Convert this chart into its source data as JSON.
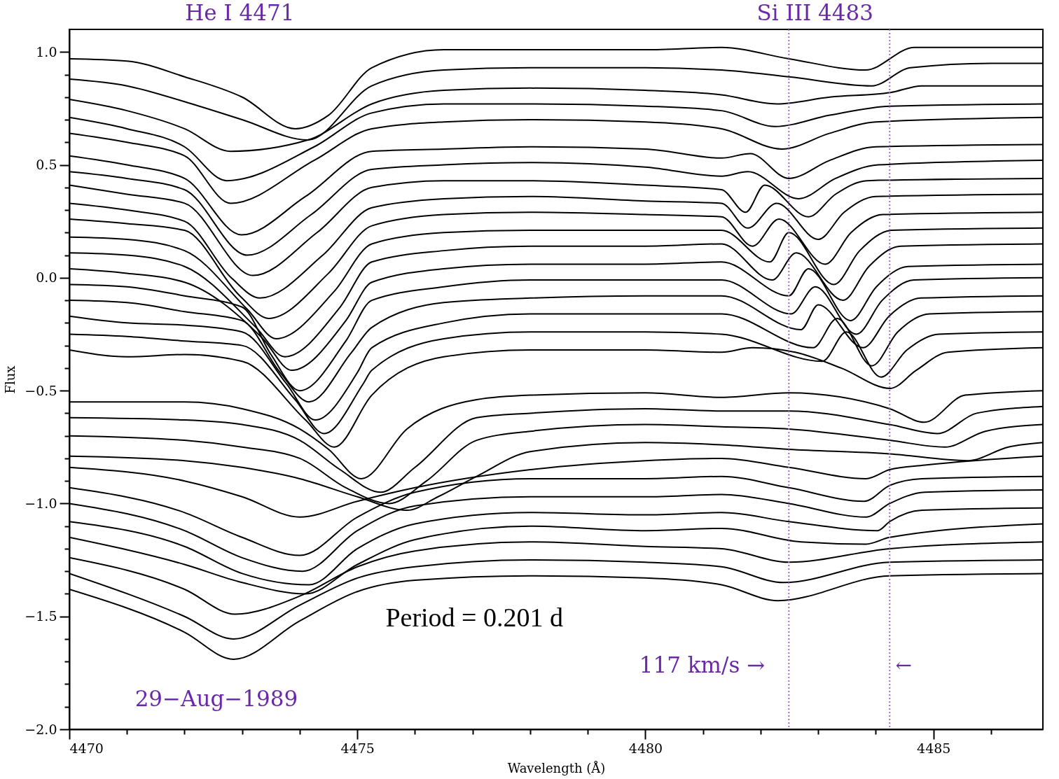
{
  "chart_data": {
    "type": "line",
    "xlabel": "Wavelength (Å)",
    "ylabel": "Flux",
    "xlim": [
      4470,
      4486.9
    ],
    "ylim": [
      -2.0,
      1.1
    ],
    "xticks": [
      4470,
      {
        "value": 4471,
        "label": null
      },
      {
        "value": 4472,
        "label": null
      },
      {
        "value": 4473,
        "label": null
      },
      {
        "value": 4474,
        "label": null
      },
      4475,
      {
        "value": 4476,
        "label": null
      },
      {
        "value": 4477,
        "label": null
      },
      {
        "value": 4478,
        "label": null
      },
      {
        "value": 4479,
        "label": null
      },
      4480,
      {
        "value": 4481,
        "label": null
      },
      {
        "value": 4482,
        "label": null
      },
      {
        "value": 4483,
        "label": null
      },
      {
        "value": 4484,
        "label": null
      },
      4485,
      {
        "value": 4486,
        "label": null
      }
    ],
    "yticks": [
      {
        "value": -2,
        "label": "−2.0"
      },
      {
        "value": -1.9,
        "label": null
      },
      {
        "value": -1.8,
        "label": null
      },
      {
        "value": -1.7,
        "label": null
      },
      {
        "value": -1.6,
        "label": null
      },
      {
        "value": -1.5,
        "label": "−1.5"
      },
      {
        "value": -1.4,
        "label": null
      },
      {
        "value": -1.3,
        "label": null
      },
      {
        "value": -1.2,
        "label": null
      },
      {
        "value": -1.1,
        "label": null
      },
      {
        "value": -1,
        "label": "−1.0"
      },
      {
        "value": -0.9,
        "label": null
      },
      {
        "value": -0.8,
        "label": null
      },
      {
        "value": -0.7,
        "label": null
      },
      {
        "value": -0.6,
        "label": null
      },
      {
        "value": -0.5,
        "label": "−0.5"
      },
      {
        "value": -0.4,
        "label": null
      },
      {
        "value": -0.3,
        "label": null
      },
      {
        "value": -0.2,
        "label": null
      },
      {
        "value": -0.1,
        "label": null
      },
      {
        "value": 0,
        "label": "0.0"
      },
      {
        "value": 0.1,
        "label": null
      },
      {
        "value": 0.2,
        "label": null
      },
      {
        "value": 0.3,
        "label": null
      },
      {
        "value": 0.4,
        "label": null
      },
      {
        "value": 0.5,
        "label": "0.5"
      },
      {
        "value": 0.6,
        "label": null
      },
      {
        "value": 0.7,
        "label": null
      },
      {
        "value": 0.8,
        "label": null
      },
      {
        "value": 0.9,
        "label": null
      },
      {
        "value": 1,
        "label": "1.0"
      }
    ],
    "ref_lines": [
      {
        "axis": "x",
        "value": 4482.49,
        "color": "#9b6bd6",
        "line_style": "dotted"
      },
      {
        "axis": "x",
        "value": 4484.24,
        "color": "#9b6bd6",
        "line_style": "dotted"
      }
    ],
    "annotations": [
      "He I 4471",
      "Si III 4483",
      "Period = 0.201 d",
      "117 km/s →",
      "←",
      "29−Aug−1989"
    ],
    "series": [
      {
        "color": "#000000",
        "x": [
          4470,
          4471,
          4472,
          4473,
          4473.92,
          4474.5,
          4475.25,
          4476.5,
          4478,
          4480,
          4481.32,
          4482.49,
          4483.82,
          4484.67,
          4486,
          4486.9
        ],
        "values": [
          0.97,
          0.96,
          0.89,
          0.8,
          0.66,
          0.72,
          0.93,
          1.01,
          1.01,
          1.01,
          1.02,
          0.97,
          0.92,
          1.02,
          1.02,
          1.02
        ]
      },
      {
        "color": "#000000",
        "x": [
          4470,
          4471,
          4472,
          4473,
          4474.14,
          4475.25,
          4476.5,
          4478,
          4480,
          4481.32,
          4482.49,
          4483.93,
          4484.6,
          4486,
          4486.9
        ],
        "values": [
          0.88,
          0.85,
          0.78,
          0.7,
          0.61,
          0.85,
          0.92,
          0.93,
          0.93,
          0.92,
          0.89,
          0.85,
          0.93,
          0.95,
          0.95
        ]
      },
      {
        "color": "#000000",
        "x": [
          4470,
          4471,
          4472,
          4472.8,
          4474.14,
          4475.25,
          4476.5,
          4478,
          4480,
          4481.32,
          4482.28,
          4483.2,
          4484.25,
          4484.8,
          4486.9
        ],
        "values": [
          0.79,
          0.74,
          0.66,
          0.56,
          0.61,
          0.77,
          0.83,
          0.84,
          0.83,
          0.81,
          0.77,
          0.8,
          0.82,
          0.85,
          0.85
        ]
      },
      {
        "color": "#000000",
        "x": [
          4470,
          4471,
          4472,
          4472.73,
          4474.25,
          4475.25,
          4476.5,
          4478,
          4480,
          4481.32,
          4482.25,
          4483.2,
          4484.25,
          4486.9
        ],
        "values": [
          0.71,
          0.66,
          0.58,
          0.43,
          0.58,
          0.73,
          0.77,
          0.77,
          0.76,
          0.74,
          0.67,
          0.72,
          0.76,
          0.77
        ]
      },
      {
        "color": "#000000",
        "x": [
          4470,
          4471,
          4472,
          4472.8,
          4474.25,
          4475.25,
          4476.5,
          4478,
          4480,
          4481.32,
          4482.37,
          4483.2,
          4484.0,
          4486.9
        ],
        "values": [
          0.64,
          0.6,
          0.54,
          0.33,
          0.52,
          0.66,
          0.69,
          0.7,
          0.69,
          0.66,
          0.57,
          0.64,
          0.69,
          0.71
        ]
      },
      {
        "color": "#000000",
        "x": [
          4470,
          4471,
          4472,
          4472.99,
          4474.1,
          4475.25,
          4476.5,
          4478,
          4480,
          4481.32,
          4481.82,
          4482.49,
          4483.2,
          4484.0,
          4486.9
        ],
        "values": [
          0.54,
          0.5,
          0.44,
          0.19,
          0.36,
          0.56,
          0.57,
          0.58,
          0.57,
          0.53,
          0.55,
          0.44,
          0.52,
          0.58,
          0.59
        ]
      },
      {
        "color": "#000000",
        "x": [
          4470,
          4471,
          4472,
          4473.09,
          4474.2,
          4475.25,
          4476.5,
          4478,
          4480,
          4481.32,
          4481.78,
          4482.66,
          4483.3,
          4484.04,
          4486.9
        ],
        "values": [
          0.47,
          0.44,
          0.39,
          0.1,
          0.28,
          0.48,
          0.5,
          0.51,
          0.49,
          0.45,
          0.47,
          0.35,
          0.44,
          0.5,
          0.52
        ]
      },
      {
        "color": "#000000",
        "x": [
          4470,
          4471,
          4472,
          4473.19,
          4474.3,
          4475.25,
          4476.5,
          4478,
          4480,
          4481.32,
          4481.74,
          4482.07,
          4482.83,
          4483.3,
          4483.85,
          4486.9
        ],
        "values": [
          0.41,
          0.37,
          0.33,
          0.01,
          0.2,
          0.4,
          0.43,
          0.43,
          0.41,
          0.39,
          0.29,
          0.41,
          0.27,
          0.37,
          0.43,
          0.44
        ]
      },
      {
        "color": "#000000",
        "x": [
          4470,
          4471,
          4472,
          4472.81,
          4473.31,
          4474.4,
          4475.25,
          4476.5,
          4478,
          4480,
          4481.32,
          4481.78,
          4482.28,
          4483.0,
          4483.45,
          4484.0,
          4486.9
        ],
        "values": [
          0.33,
          0.3,
          0.25,
          0.0,
          -0.09,
          0.1,
          0.31,
          0.35,
          0.36,
          0.34,
          0.33,
          0.22,
          0.33,
          0.17,
          0.29,
          0.36,
          0.37
        ]
      },
      {
        "color": "#000000",
        "x": [
          4470,
          4471,
          4472,
          4472.96,
          4473.46,
          4474.5,
          4475.25,
          4476.5,
          4478,
          4480,
          4481.32,
          4481.86,
          4482.32,
          4483.12,
          4483.57,
          4484.12,
          4486.9
        ],
        "values": [
          0.26,
          0.24,
          0.21,
          -0.08,
          -0.18,
          0.02,
          0.23,
          0.28,
          0.29,
          0.28,
          0.27,
          0.14,
          0.26,
          0.06,
          0.2,
          0.28,
          0.29
        ]
      },
      {
        "color": "#000000",
        "x": [
          4470,
          4471,
          4472,
          4473.09,
          4473.59,
          4474.6,
          4475.25,
          4476.5,
          4478,
          4480,
          4481.32,
          4482.16,
          4482.49,
          4483.27,
          4483.72,
          4484.27,
          4486.9
        ],
        "values": [
          0.18,
          0.17,
          0.12,
          -0.14,
          -0.27,
          -0.06,
          0.15,
          0.2,
          0.21,
          0.21,
          0.21,
          0.07,
          0.2,
          -0.03,
          0.12,
          0.21,
          0.22
        ]
      },
      {
        "color": "#000000",
        "x": [
          4470,
          4471,
          4472,
          4473.24,
          4473.74,
          4474.7,
          4475.25,
          4476.5,
          4478,
          4480,
          4481.32,
          4482.2,
          4482.62,
          4483.43,
          4483.88,
          4484.43,
          4486.9
        ],
        "values": [
          0.11,
          0.1,
          0.05,
          -0.22,
          -0.35,
          -0.13,
          0.07,
          0.12,
          0.14,
          0.14,
          0.15,
          -0.01,
          0.11,
          -0.1,
          0.05,
          0.14,
          0.15
        ]
      },
      {
        "color": "#000000",
        "x": [
          4470,
          4471,
          4472,
          4473.36,
          4473.86,
          4474.8,
          4475.25,
          4476.5,
          4478,
          4480,
          4481.32,
          4482.49,
          4482.83,
          4483.56,
          4484.01,
          4484.56,
          4486.9
        ],
        "values": [
          0.04,
          0.02,
          -0.02,
          -0.27,
          -0.41,
          -0.19,
          -0.02,
          0.04,
          0.06,
          0.06,
          0.07,
          -0.08,
          0.04,
          -0.19,
          -0.04,
          0.05,
          0.06
        ]
      },
      {
        "color": "#000000",
        "x": [
          4470,
          4471,
          4472,
          4473,
          4473.5,
          4474.0,
          4474.8,
          4475.25,
          4476.5,
          4478,
          4480,
          4481.32,
          4482.53,
          4482.95,
          4483.66,
          4484.11,
          4484.66,
          4486.9
        ],
        "values": [
          -0.03,
          -0.04,
          -0.08,
          -0.13,
          -0.34,
          -0.5,
          -0.28,
          -0.1,
          -0.04,
          -0.01,
          -0.01,
          -0.01,
          -0.16,
          -0.04,
          -0.25,
          -0.1,
          -0.01,
          0.0
        ]
      },
      {
        "color": "#000000",
        "x": [
          4470,
          4471,
          4472,
          4473,
          4473.66,
          4474.16,
          4474.9,
          4475.25,
          4476.5,
          4478,
          4480,
          4481.32,
          4482.7,
          4483.0,
          4483.78,
          4484.23,
          4484.78,
          4486.9
        ],
        "values": [
          -0.1,
          -0.11,
          -0.15,
          -0.19,
          -0.42,
          -0.55,
          -0.33,
          -0.22,
          -0.11,
          -0.09,
          -0.08,
          -0.08,
          -0.23,
          -0.12,
          -0.31,
          -0.17,
          -0.09,
          -0.08
        ]
      },
      {
        "color": "#000000",
        "x": [
          4470,
          4471,
          4472,
          4473,
          4473.77,
          4474.27,
          4475.0,
          4475.25,
          4476.5,
          4478,
          4480,
          4481.32,
          4482.91,
          4483.33,
          4483.93,
          4484.38,
          4484.93,
          4486.9
        ],
        "values": [
          -0.17,
          -0.2,
          -0.21,
          -0.24,
          -0.47,
          -0.63,
          -0.42,
          -0.31,
          -0.2,
          -0.16,
          -0.16,
          -0.16,
          -0.31,
          -0.18,
          -0.39,
          -0.24,
          -0.16,
          -0.15
        ]
      },
      {
        "color": "#000000",
        "x": [
          4470,
          4471,
          4472,
          4473,
          4473.92,
          4474.42,
          4475.1,
          4475.25,
          4476.5,
          4478,
          4480,
          4481.32,
          4483.07,
          4483.49,
          4484.09,
          4484.54,
          4485.09,
          4486.9
        ],
        "values": [
          -0.25,
          -0.26,
          -0.28,
          -0.3,
          -0.54,
          -0.69,
          -0.47,
          -0.41,
          -0.27,
          -0.24,
          -0.24,
          -0.25,
          -0.37,
          -0.24,
          -0.44,
          -0.32,
          -0.25,
          -0.24
        ]
      },
      {
        "color": "#000000",
        "x": [
          4470,
          4471,
          4472,
          4473,
          4474.1,
          4474.6,
          4475.25,
          4476.5,
          4478,
          4480,
          4481.32,
          4481.86,
          4482.6,
          4483.4,
          4484.25,
          4484.7,
          4485.25,
          4486.9
        ],
        "values": [
          -0.32,
          -0.35,
          -0.34,
          -0.37,
          -0.63,
          -0.75,
          -0.52,
          -0.35,
          -0.32,
          -0.32,
          -0.33,
          -0.31,
          -0.33,
          -0.4,
          -0.49,
          -0.41,
          -0.33,
          -0.31
        ]
      },
      {
        "color": "#000000",
        "x": [
          4470,
          4472,
          4473,
          4474,
          4474.5,
          4475.07,
          4475.86,
          4477.07,
          4478,
          4480,
          4481.32,
          4482.49,
          4484.24,
          4484.84,
          4485.55,
          4486.9
        ],
        "values": [
          -0.55,
          -0.55,
          -0.58,
          -0.67,
          -0.76,
          -0.89,
          -0.67,
          -0.54,
          -0.52,
          -0.51,
          -0.53,
          -0.51,
          -0.58,
          -0.64,
          -0.52,
          -0.5
        ]
      },
      {
        "color": "#000000",
        "x": [
          4470,
          4472,
          4473,
          4474,
          4474.7,
          4475.4,
          4476,
          4477.07,
          4478,
          4480,
          4481.32,
          4482.49,
          4484.24,
          4485.07,
          4485.75,
          4486.9
        ],
        "values": [
          -0.62,
          -0.63,
          -0.65,
          -0.72,
          -0.85,
          -0.95,
          -0.84,
          -0.62,
          -0.6,
          -0.58,
          -0.59,
          -0.59,
          -0.65,
          -0.69,
          -0.6,
          -0.57
        ]
      },
      {
        "color": "#000000",
        "x": [
          4470,
          4472,
          4473,
          4474,
          4474.8,
          4475.55,
          4476.2,
          4477.07,
          4478,
          4480,
          4481.32,
          4482.49,
          4484.24,
          4485.2,
          4485.9,
          4486.9
        ],
        "values": [
          -0.7,
          -0.72,
          -0.75,
          -0.8,
          -0.93,
          -1.0,
          -0.9,
          -0.72,
          -0.68,
          -0.65,
          -0.66,
          -0.67,
          -0.72,
          -0.75,
          -0.68,
          -0.65
        ]
      },
      {
        "color": "#000000",
        "x": [
          4470,
          4472,
          4473,
          4474,
          4475,
          4475.86,
          4476.4,
          4477.07,
          4478,
          4480,
          4481.32,
          4482.49,
          4484.24,
          4485.6,
          4486.3,
          4486.9
        ],
        "values": [
          -0.79,
          -0.81,
          -0.84,
          -0.89,
          -0.97,
          -1.03,
          -0.97,
          -0.88,
          -0.77,
          -0.73,
          -0.74,
          -0.76,
          -0.78,
          -0.81,
          -0.75,
          -0.73
        ]
      },
      {
        "color": "#000000",
        "x": [
          4470,
          4472,
          4473,
          4474,
          4475,
          4476,
          4478,
          4480,
          4481.32,
          4482.49,
          4483.83,
          4484.24,
          4484.85,
          4486.9
        ],
        "values": [
          -0.84,
          -0.9,
          -0.97,
          -1.06,
          -0.99,
          -0.93,
          -0.85,
          -0.81,
          -0.8,
          -0.84,
          -0.89,
          -0.85,
          -0.83,
          -0.79
        ]
      },
      {
        "color": "#000000",
        "x": [
          4470,
          4472,
          4473,
          4474,
          4475,
          4476,
          4478,
          4480,
          4481.32,
          4482.49,
          4483.8,
          4484.24,
          4484.8,
          4486.9
        ],
        "values": [
          -0.93,
          -1.04,
          -1.15,
          -1.23,
          -1.06,
          -0.95,
          -0.89,
          -0.89,
          -0.88,
          -0.93,
          -0.99,
          -0.92,
          -0.89,
          -0.88
        ]
      },
      {
        "color": "#000000",
        "x": [
          4470,
          4472,
          4473,
          4474.05,
          4475,
          4476,
          4478,
          4480,
          4481.32,
          4482.49,
          4483.83,
          4484.24,
          4484.85,
          4486.9
        ],
        "values": [
          -1.0,
          -1.12,
          -1.24,
          -1.3,
          -1.12,
          -1.01,
          -0.97,
          -0.97,
          -0.96,
          -1.0,
          -1.06,
          -1.0,
          -0.95,
          -0.94
        ]
      },
      {
        "color": "#000000",
        "x": [
          4470,
          4472,
          4473,
          4474.16,
          4475,
          4476,
          4478,
          4480,
          4481.32,
          4482.49,
          4484.03,
          4484.24,
          4484.8,
          4486.9
        ],
        "values": [
          -1.08,
          -1.19,
          -1.31,
          -1.36,
          -1.2,
          -1.09,
          -1.04,
          -1.05,
          -1.04,
          -1.08,
          -1.12,
          -1.08,
          -1.03,
          -1.02
        ]
      },
      {
        "color": "#000000",
        "x": [
          4470,
          4472,
          4473,
          4474.1,
          4475,
          4476,
          4478,
          4480,
          4481.32,
          4482.7,
          4483.83,
          4484.24,
          4486.9
        ],
        "values": [
          -1.15,
          -1.27,
          -1.35,
          -1.4,
          -1.27,
          -1.16,
          -1.1,
          -1.12,
          -1.11,
          -1.17,
          -1.18,
          -1.15,
          -1.09
        ]
      },
      {
        "color": "#000000",
        "x": [
          4470,
          4472,
          4472.88,
          4474,
          4475,
          4476,
          4478,
          4480,
          4481.32,
          4482.49,
          4484.24,
          4486.9
        ],
        "values": [
          -1.24,
          -1.38,
          -1.49,
          -1.41,
          -1.28,
          -1.21,
          -1.17,
          -1.19,
          -1.2,
          -1.26,
          -1.2,
          -1.17
        ]
      },
      {
        "color": "#000000",
        "x": [
          4470,
          4472,
          4472.85,
          4474,
          4475,
          4476,
          4478,
          4480,
          4481.32,
          4482.4,
          4484.24,
          4486.9
        ],
        "values": [
          -1.31,
          -1.5,
          -1.6,
          -1.45,
          -1.33,
          -1.28,
          -1.25,
          -1.26,
          -1.28,
          -1.35,
          -1.26,
          -1.25
        ]
      },
      {
        "color": "#000000",
        "x": [
          4470,
          4472,
          4472.85,
          4474,
          4475,
          4476,
          4478,
          4480,
          4481.32,
          4482.3,
          4484.24,
          4486.9
        ],
        "values": [
          -1.38,
          -1.57,
          -1.69,
          -1.52,
          -1.39,
          -1.34,
          -1.32,
          -1.33,
          -1.36,
          -1.43,
          -1.32,
          -1.31
        ]
      }
    ]
  }
}
